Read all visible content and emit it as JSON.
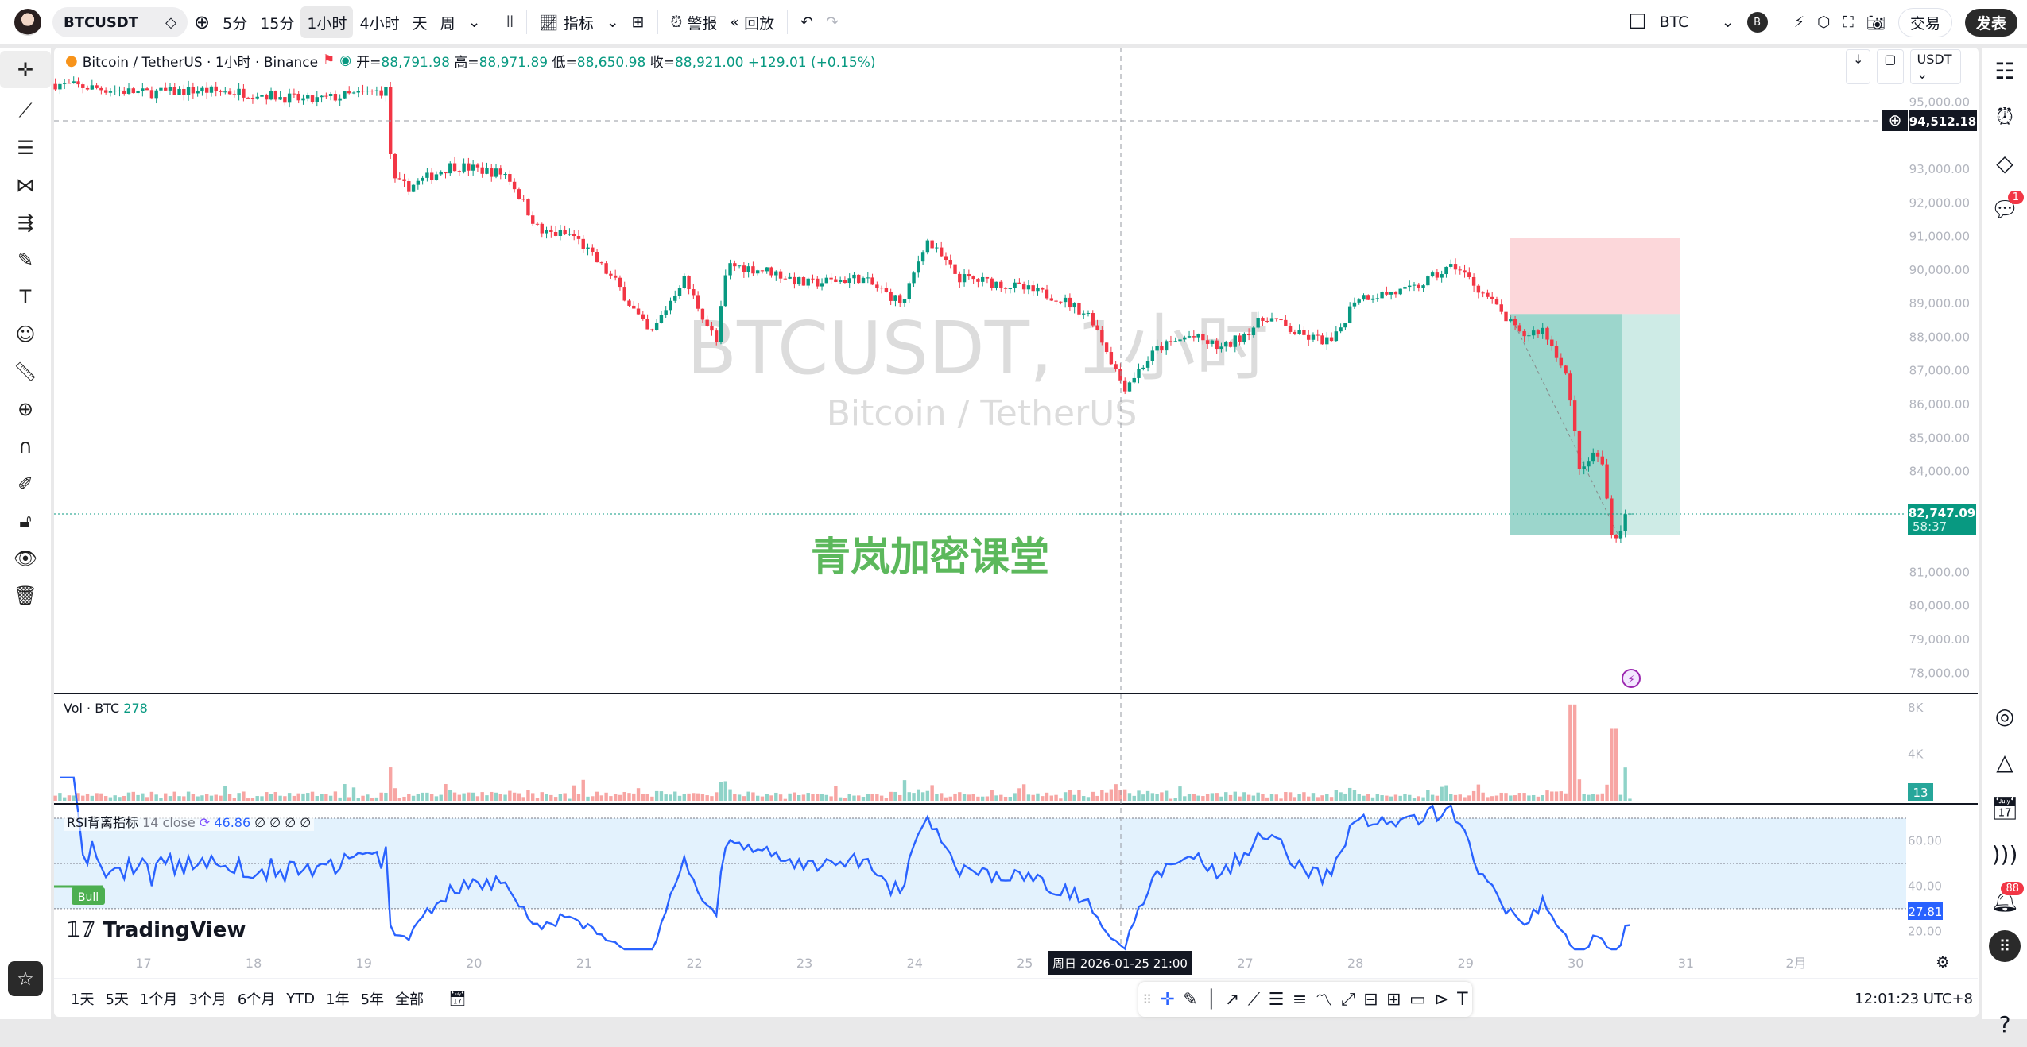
{
  "topbar": {
    "symbol": "BTCUSDT",
    "intervals": [
      "5分",
      "15分",
      "1小时",
      "4小时",
      "天",
      "周"
    ],
    "active_interval": "1小时",
    "indicators": "指标",
    "alerts": "警报",
    "replay": "回放",
    "currency": "BTC",
    "account_initial": "B",
    "trade": "交易",
    "publish": "发表"
  },
  "legend": {
    "title": "Bitcoin / TetherUS · 1小时 · Binance",
    "open_label": "开=",
    "open": "88,791.98",
    "high_label": "高=",
    "high": "88,971.89",
    "low_label": "低=",
    "low": "88,650.98",
    "close_label": "收=",
    "close": "88,921.00",
    "change": "+129.01 (+0.15%)"
  },
  "price_scale": {
    "currency": "USDT"
  },
  "watermark": {
    "symbol": "BTCUSDT, 1小时",
    "name": "Bitcoin / TetherUS",
    "overlay": "青岚加密课堂"
  },
  "crosshair": {
    "price": "94,512.18",
    "time": "周日 2026-01-25  21:00"
  },
  "last_price": {
    "price": "82,747.09",
    "countdown": "58:37"
  },
  "volume": {
    "label": "Vol · BTC",
    "value": "278",
    "last": "13"
  },
  "rsi": {
    "label": "RSI背离指标",
    "params": "14 close",
    "value": "46.86",
    "na": [
      "∅",
      "∅",
      "∅",
      "∅"
    ],
    "last": "27.81",
    "tag": "Bull"
  },
  "logo": "TradingView",
  "bottombar": {
    "ranges": [
      "1天",
      "5天",
      "1个月",
      "3个月",
      "6个月",
      "YTD",
      "1年",
      "5年",
      "全部"
    ],
    "clock": "12:01:23 UTC+8"
  },
  "rightbar": {
    "chat_badge": "1",
    "alert_badge": "88"
  },
  "colors": {
    "up": "#089981",
    "down": "#f23645",
    "rsi": "#2962ff",
    "band": "#e3f2fd"
  },
  "chart_data": {
    "type": "candlestick",
    "interval": "1h",
    "price_ticks": [
      "95,000.00",
      "94,000.00",
      "93,000.00",
      "92,000.00",
      "91,000.00",
      "90,000.00",
      "89,000.00",
      "88,000.00",
      "87,000.00",
      "86,000.00",
      "85,000.00",
      "84,000.00",
      "83,000.00",
      "82,000.00",
      "81,000.00",
      "80,000.00",
      "79,000.00",
      "78,000.00"
    ],
    "price_values": [
      95000,
      94000,
      93000,
      92000,
      91000,
      90000,
      89000,
      88000,
      87000,
      86000,
      85000,
      84000,
      83000,
      82000,
      81000,
      80000,
      79000,
      78000
    ],
    "volume_ticks": [
      "8K",
      "4K"
    ],
    "rsi_ticks": [
      "60.00",
      "40.00",
      "20.00"
    ],
    "rsi_band": [
      30,
      70
    ],
    "time_ticks": [
      "17",
      "18",
      "19",
      "20",
      "21",
      "22",
      "23",
      "24",
      "25",
      "27",
      "28",
      "29",
      "30",
      "31",
      "2月"
    ],
    "time_tick_days": [
      17,
      18,
      19,
      20,
      21,
      22,
      23,
      24,
      25,
      27,
      28,
      29,
      30,
      31,
      32
    ],
    "approx_close_path": [
      [
        16.2,
        95540
      ],
      [
        17,
        95270
      ],
      [
        17.5,
        95350
      ],
      [
        18,
        95270
      ],
      [
        18.5,
        95040
      ],
      [
        19.2,
        95350
      ],
      [
        19.26,
        92650
      ],
      [
        19.4,
        92460
      ],
      [
        19.8,
        93120
      ],
      [
        20.3,
        92850
      ],
      [
        20.6,
        91120
      ],
      [
        20.9,
        91040
      ],
      [
        21.3,
        89580
      ],
      [
        21.6,
        88040
      ],
      [
        21.9,
        89770
      ],
      [
        22.2,
        87850
      ],
      [
        22.3,
        90150
      ],
      [
        22.7,
        89960
      ],
      [
        23,
        89580
      ],
      [
        23.5,
        89770
      ],
      [
        23.9,
        89000
      ],
      [
        24.1,
        90920
      ],
      [
        24.4,
        89770
      ],
      [
        24.8,
        89580
      ],
      [
        25.3,
        89190
      ],
      [
        25.6,
        88620
      ],
      [
        25.9,
        86500
      ],
      [
        26.2,
        87650
      ],
      [
        26.5,
        88040
      ],
      [
        26.8,
        87650
      ],
      [
        27.2,
        88620
      ],
      [
        27.5,
        88040
      ],
      [
        27.8,
        87850
      ],
      [
        28,
        89190
      ],
      [
        28.5,
        89390
      ],
      [
        28.9,
        90150
      ],
      [
        29.2,
        89190
      ],
      [
        29.5,
        88040
      ],
      [
        29.7,
        88230
      ],
      [
        29.9,
        87070
      ],
      [
        30,
        84960
      ],
      [
        30.05,
        83810
      ],
      [
        30.15,
        84580
      ],
      [
        30.25,
        84190
      ],
      [
        30.3,
        82650
      ],
      [
        30.35,
        81880
      ],
      [
        30.45,
        82650
      ],
      [
        30.5,
        82747
      ]
    ],
    "position_tool": {
      "start_day": 29.4,
      "end_day": 30.95,
      "stop": 90960,
      "entry": 88690,
      "target": 82120
    }
  }
}
